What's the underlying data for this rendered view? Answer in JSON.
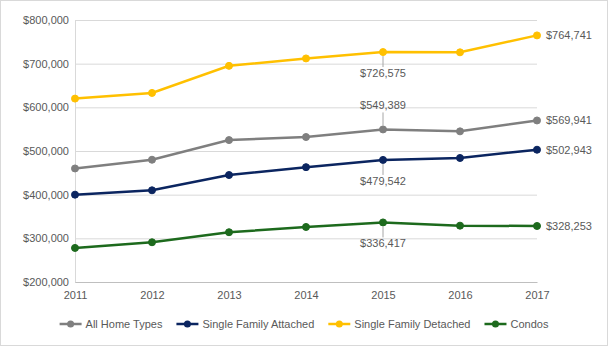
{
  "chart_data": {
    "type": "line",
    "x": [
      2011,
      2012,
      2013,
      2014,
      2015,
      2016,
      2017
    ],
    "xlim": [
      2011,
      2017
    ],
    "xticks": [
      2011,
      2012,
      2013,
      2014,
      2015,
      2016,
      2017
    ],
    "ylim": [
      200000,
      800000
    ],
    "yticks": [
      {
        "value": 200000,
        "label": "$200,000"
      },
      {
        "value": 300000,
        "label": "$300,000"
      },
      {
        "value": 400000,
        "label": "$400,000"
      },
      {
        "value": 500000,
        "label": "$500,000"
      },
      {
        "value": 600000,
        "label": "$600,000"
      },
      {
        "value": 700000,
        "label": "$700,000"
      },
      {
        "value": 800000,
        "label": "$800,000"
      }
    ],
    "grid": true,
    "legend": "bottom",
    "data_labels": true,
    "marker": "circle",
    "line_style": "solid",
    "series": [
      {
        "name": "All Home Types",
        "color": "#7f7f7f",
        "values": [
          460000,
          480000,
          525000,
          532000,
          549389,
          545000,
          569941
        ],
        "value_labels": [
          null,
          null,
          null,
          null,
          "$549,389",
          null,
          "$569,941"
        ]
      },
      {
        "name": "Single Family Attached",
        "color": "#0b2560",
        "values": [
          400000,
          410000,
          445000,
          463000,
          479542,
          484000,
          502943
        ],
        "value_labels": [
          null,
          null,
          null,
          null,
          "$479,542",
          null,
          "$502,943"
        ]
      },
      {
        "name": "Single Family Detached",
        "color": "#ffc000",
        "values": [
          620000,
          633000,
          695000,
          712000,
          726575,
          726000,
          764741
        ],
        "value_labels": [
          null,
          null,
          null,
          null,
          "$726,575",
          null,
          "$764,741"
        ]
      },
      {
        "name": "Condos",
        "color": "#1d6a1d",
        "values": [
          278000,
          291000,
          314000,
          326000,
          336417,
          329000,
          328253
        ],
        "value_labels": [
          null,
          null,
          null,
          null,
          "$336,417",
          null,
          "$328,253"
        ]
      }
    ]
  }
}
